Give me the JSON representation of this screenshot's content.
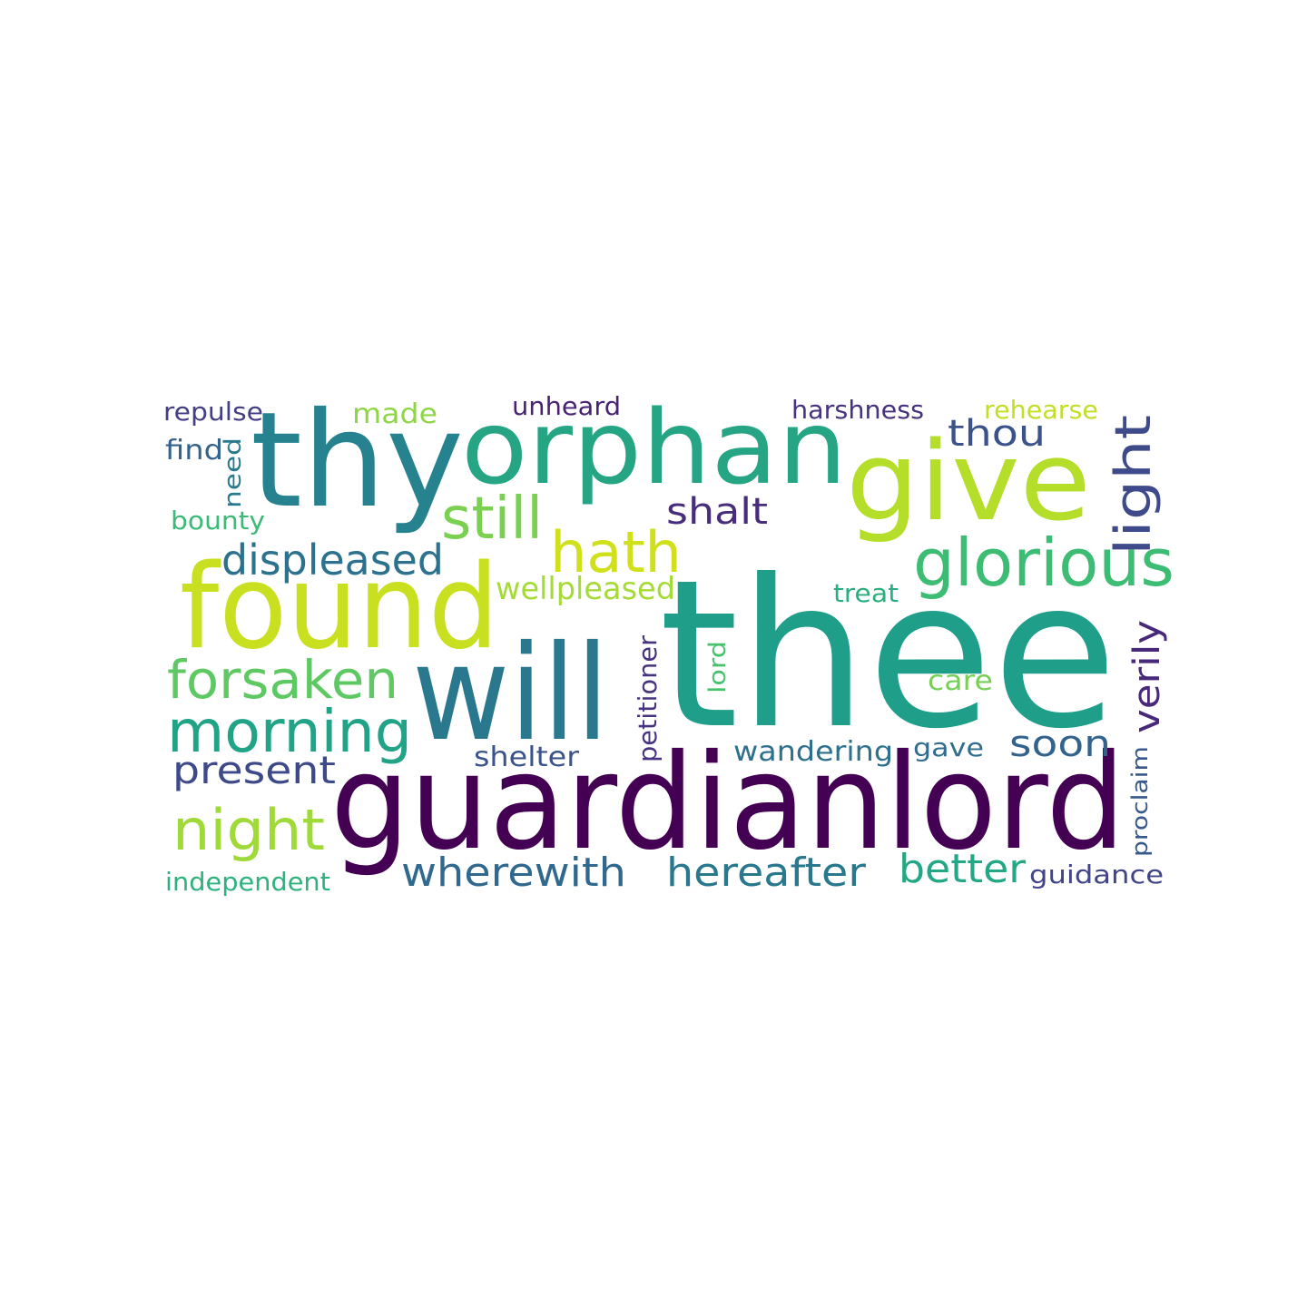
{
  "palette": {
    "dark-purple": "#440154",
    "indigo": "#482878",
    "slate-blue": "#3e4a89",
    "steel-blue": "#31688e",
    "teal-blue": "#26828e",
    "teal": "#1f9e89",
    "green-teal": "#35b779",
    "green": "#6ece58",
    "lime": "#b5de2b",
    "yellow": "#d4e21a"
  },
  "words": [
    {
      "text": "thee",
      "color": "#1f9e89"
    },
    {
      "text": "guardianlord",
      "color": "#440154"
    },
    {
      "text": "thy",
      "color": "#26828e"
    },
    {
      "text": "orphan",
      "color": "#25a584"
    },
    {
      "text": "give",
      "color": "#b5de2b"
    },
    {
      "text": "found",
      "color": "#c8e020"
    },
    {
      "text": "will",
      "color": "#2a788e"
    },
    {
      "text": "light",
      "color": "#3e4a89"
    },
    {
      "text": "glorious",
      "color": "#3dbc74"
    },
    {
      "text": "still",
      "color": "#7ad151"
    },
    {
      "text": "hath",
      "color": "#d0e11c"
    },
    {
      "text": "forsaken",
      "color": "#5ec962"
    },
    {
      "text": "morning",
      "color": "#20a386"
    },
    {
      "text": "night",
      "color": "#a0da39"
    },
    {
      "text": "displeased",
      "color": "#2c728e"
    },
    {
      "text": "present",
      "color": "#3e4989"
    },
    {
      "text": "wherewith",
      "color": "#31688e"
    },
    {
      "text": "hereafter",
      "color": "#2a788e"
    },
    {
      "text": "better",
      "color": "#22a884"
    },
    {
      "text": "thou",
      "color": "#3b528b"
    },
    {
      "text": "shalt",
      "color": "#472d7b"
    },
    {
      "text": "soon",
      "color": "#33638d"
    },
    {
      "text": "verily",
      "color": "#482878"
    },
    {
      "text": "wellpleased",
      "color": "#a5db36"
    },
    {
      "text": "wandering",
      "color": "#2d708e"
    },
    {
      "text": "shelter",
      "color": "#3b528b"
    },
    {
      "text": "petitioner",
      "color": "#46327e"
    },
    {
      "text": "lord",
      "color": "#4ac16d"
    },
    {
      "text": "care",
      "color": "#75d054"
    },
    {
      "text": "gave",
      "color": "#2f6c8e"
    },
    {
      "text": "treat",
      "color": "#29af7f"
    },
    {
      "text": "repulse",
      "color": "#433e85"
    },
    {
      "text": "made",
      "color": "#8ed645"
    },
    {
      "text": "unheard",
      "color": "#482374"
    },
    {
      "text": "harshness",
      "color": "#46327e"
    },
    {
      "text": "rehearse",
      "color": "#c0df25"
    },
    {
      "text": "find",
      "color": "#33638d"
    },
    {
      "text": "need",
      "color": "#2a788e"
    },
    {
      "text": "bounty",
      "color": "#3aba76"
    },
    {
      "text": "independent",
      "color": "#2db27d"
    },
    {
      "text": "guidance",
      "color": "#414487"
    },
    {
      "text": "proclaim",
      "color": "#38598c"
    }
  ]
}
